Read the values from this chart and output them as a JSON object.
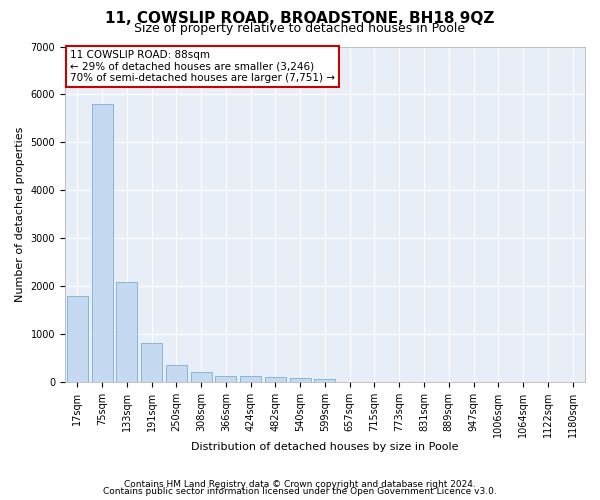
{
  "title": "11, COWSLIP ROAD, BROADSTONE, BH18 9QZ",
  "subtitle": "Size of property relative to detached houses in Poole",
  "xlabel": "Distribution of detached houses by size in Poole",
  "ylabel": "Number of detached properties",
  "categories": [
    "17sqm",
    "75sqm",
    "133sqm",
    "191sqm",
    "250sqm",
    "308sqm",
    "366sqm",
    "424sqm",
    "482sqm",
    "540sqm",
    "599sqm",
    "657sqm",
    "715sqm",
    "773sqm",
    "831sqm",
    "889sqm",
    "947sqm",
    "1006sqm",
    "1064sqm",
    "1122sqm",
    "1180sqm"
  ],
  "values": [
    1780,
    5800,
    2080,
    800,
    340,
    195,
    120,
    110,
    100,
    75,
    60,
    0,
    0,
    0,
    0,
    0,
    0,
    0,
    0,
    0,
    0
  ],
  "bar_color": "#c5d9f0",
  "bar_edge_color": "#7bafd4",
  "annotation_text": "11 COWSLIP ROAD: 88sqm\n← 29% of detached houses are smaller (3,246)\n70% of semi-detached houses are larger (7,751) →",
  "footnote1": "Contains HM Land Registry data © Crown copyright and database right 2024.",
  "footnote2": "Contains public sector information licensed under the Open Government Licence v3.0.",
  "ylim": [
    0,
    7000
  ],
  "yticks": [
    0,
    1000,
    2000,
    3000,
    4000,
    5000,
    6000,
    7000
  ],
  "figure_bg_color": "#ffffff",
  "plot_bg_color": "#e8eef8",
  "annotation_box_color": "#ffffff",
  "annotation_box_edge_color": "#cc0000",
  "grid_color": "#ffffff",
  "title_fontsize": 11,
  "subtitle_fontsize": 9,
  "label_fontsize": 8,
  "tick_fontsize": 7,
  "annot_fontsize": 7.5,
  "footnote_fontsize": 6.5
}
